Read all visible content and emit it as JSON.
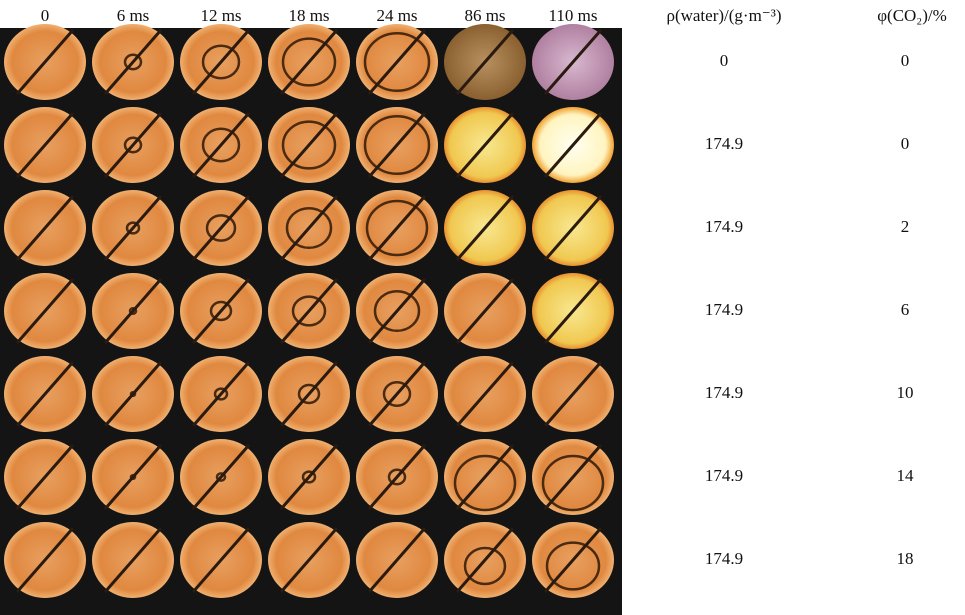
{
  "figure": {
    "time_labels": [
      "0",
      "6 ms",
      "12 ms",
      "18 ms",
      "24 ms",
      "86 ms",
      "110 ms"
    ],
    "density_header": "ρ(water)/(g·m⁻³)",
    "co2_header": "φ(CO₂)/%",
    "rows": [
      {
        "density": 0,
        "co2": 0
      },
      {
        "density": 174.9,
        "co2": 0
      },
      {
        "density": 174.9,
        "co2": 2
      },
      {
        "density": 174.9,
        "co2": 6
      },
      {
        "density": 174.9,
        "co2": 10
      },
      {
        "density": 174.9,
        "co2": 14
      },
      {
        "density": 174.9,
        "co2": 18
      }
    ]
  }
}
